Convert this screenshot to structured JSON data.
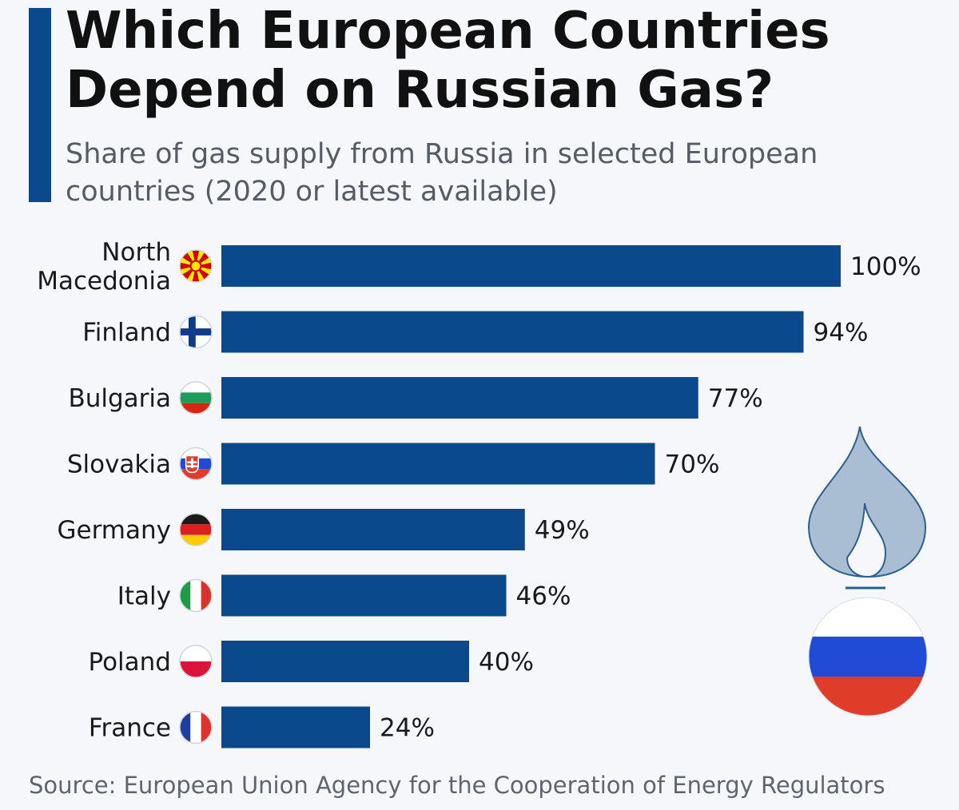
{
  "header": {
    "title": "Which European Countries Depend on Russian Gas?",
    "subtitle": "Share of gas supply from Russia in selected European countries (2020 or latest available)"
  },
  "colors": {
    "bar": "#0a4a8c",
    "accent": "#0a4a8c",
    "flame": "#a9bdd3",
    "flame_stroke": "#2c5f94"
  },
  "chart_data": {
    "type": "bar",
    "orientation": "horizontal",
    "categories": [
      "North Macedonia",
      "Finland",
      "Bulgaria",
      "Slovakia",
      "Germany",
      "Italy",
      "Poland",
      "France"
    ],
    "category_lines": [
      [
        "North",
        "Macedonia"
      ],
      [
        "Finland"
      ],
      [
        "Bulgaria"
      ],
      [
        "Slovakia"
      ],
      [
        "Germany"
      ],
      [
        "Italy"
      ],
      [
        "Poland"
      ],
      [
        "France"
      ]
    ],
    "flags": [
      "north-macedonia-flag",
      "finland-flag",
      "bulgaria-flag",
      "slovakia-flag",
      "germany-flag",
      "italy-flag",
      "poland-flag",
      "france-flag"
    ],
    "values": [
      100,
      94,
      77,
      70,
      49,
      46,
      40,
      24
    ],
    "value_labels": [
      "100%",
      "94%",
      "77%",
      "70%",
      "49%",
      "46%",
      "40%",
      "24%"
    ],
    "xlim": [
      0,
      100
    ],
    "grid": false,
    "legend": "none",
    "decoration": [
      "gas-flame-icon",
      "russia-flag"
    ]
  },
  "footer": {
    "source": "Source: European Union Agency for the Cooperation of Energy Regulators"
  }
}
